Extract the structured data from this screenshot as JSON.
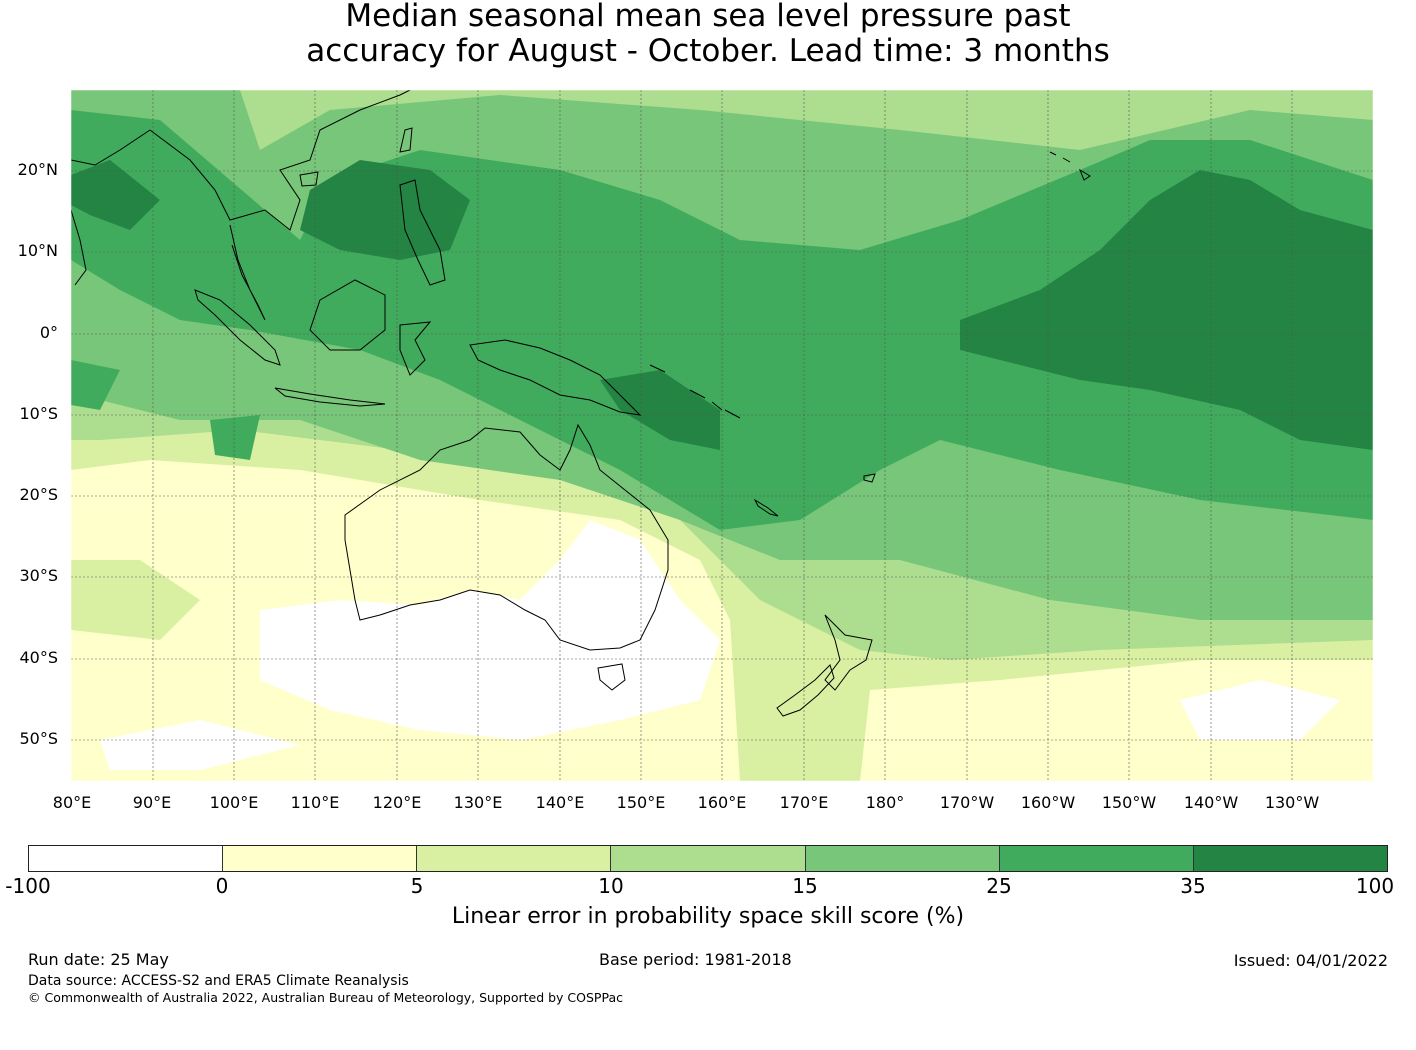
{
  "title": {
    "line1": "Median seasonal mean sea level pressure past",
    "line2": "accuracy for August - October. Lead time: 3 months"
  },
  "map": {
    "lon_labels": [
      "80°E",
      "90°E",
      "100°E",
      "110°E",
      "120°E",
      "130°E",
      "140°E",
      "150°E",
      "160°E",
      "170°E",
      "180°",
      "170°W",
      "160°W",
      "150°W",
      "140°W",
      "130°W"
    ],
    "lat_labels": [
      "20°N",
      "10°N",
      "0°",
      "10°S",
      "20°S",
      "30°S",
      "40°S",
      "50°S"
    ],
    "lon_range": [
      80,
      240
    ],
    "lat_range": [
      -55,
      30
    ],
    "grid": true
  },
  "colorbar": {
    "label": "Linear error in probability space skill score (%)",
    "ticks": [
      "-100",
      "0",
      "5",
      "10",
      "15",
      "25",
      "35",
      "100"
    ],
    "colors": [
      "#ffffff",
      "#ffffcc",
      "#d9f0a3",
      "#addd8e",
      "#78c679",
      "#41ab5d",
      "#238443"
    ]
  },
  "footer": {
    "run_date": "Run date: 25 May",
    "base_period": "Base period: 1981-2018",
    "issued": "Issued: 04/01/2022",
    "data_source": "Data source: ACCESS-S2 and ERA5 Climate Reanalysis",
    "copyright": "© Commonwealth of Australia 2022, Australian Bureau of Meteorology, Supported by COSPPac"
  }
}
